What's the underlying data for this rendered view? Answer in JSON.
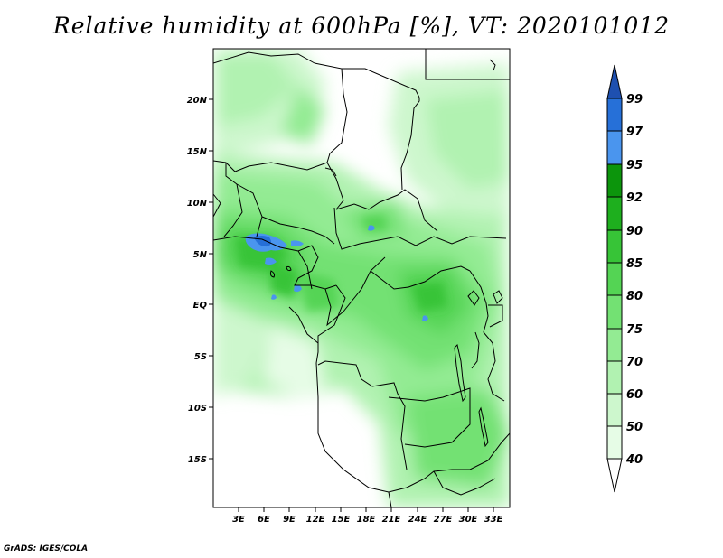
{
  "title": "Relative humidity at 600hPa [%], VT: 2020101012",
  "credit": "GrADS: IGES/COLA",
  "map": {
    "lat_ticks": [
      "20N",
      "15N",
      "10N",
      "5N",
      "EQ",
      "5S",
      "10S",
      "15S"
    ],
    "lon_ticks": [
      "3E",
      "6E",
      "9E",
      "12E",
      "15E",
      "18E",
      "21E",
      "24E",
      "27E",
      "30E",
      "33E"
    ]
  },
  "colorbar": {
    "levels": [
      "40",
      "50",
      "60",
      "70",
      "75",
      "80",
      "85",
      "90",
      "92",
      "95",
      "97",
      "99"
    ],
    "colors": [
      "#ffffff",
      "#e6fce6",
      "#cdf7cd",
      "#b1f2b1",
      "#93eb93",
      "#73e173",
      "#54d454",
      "#37c437",
      "#1eaf1e",
      "#0c950c",
      "#4a95ee",
      "#2670d8",
      "#1e50b0"
    ]
  }
}
